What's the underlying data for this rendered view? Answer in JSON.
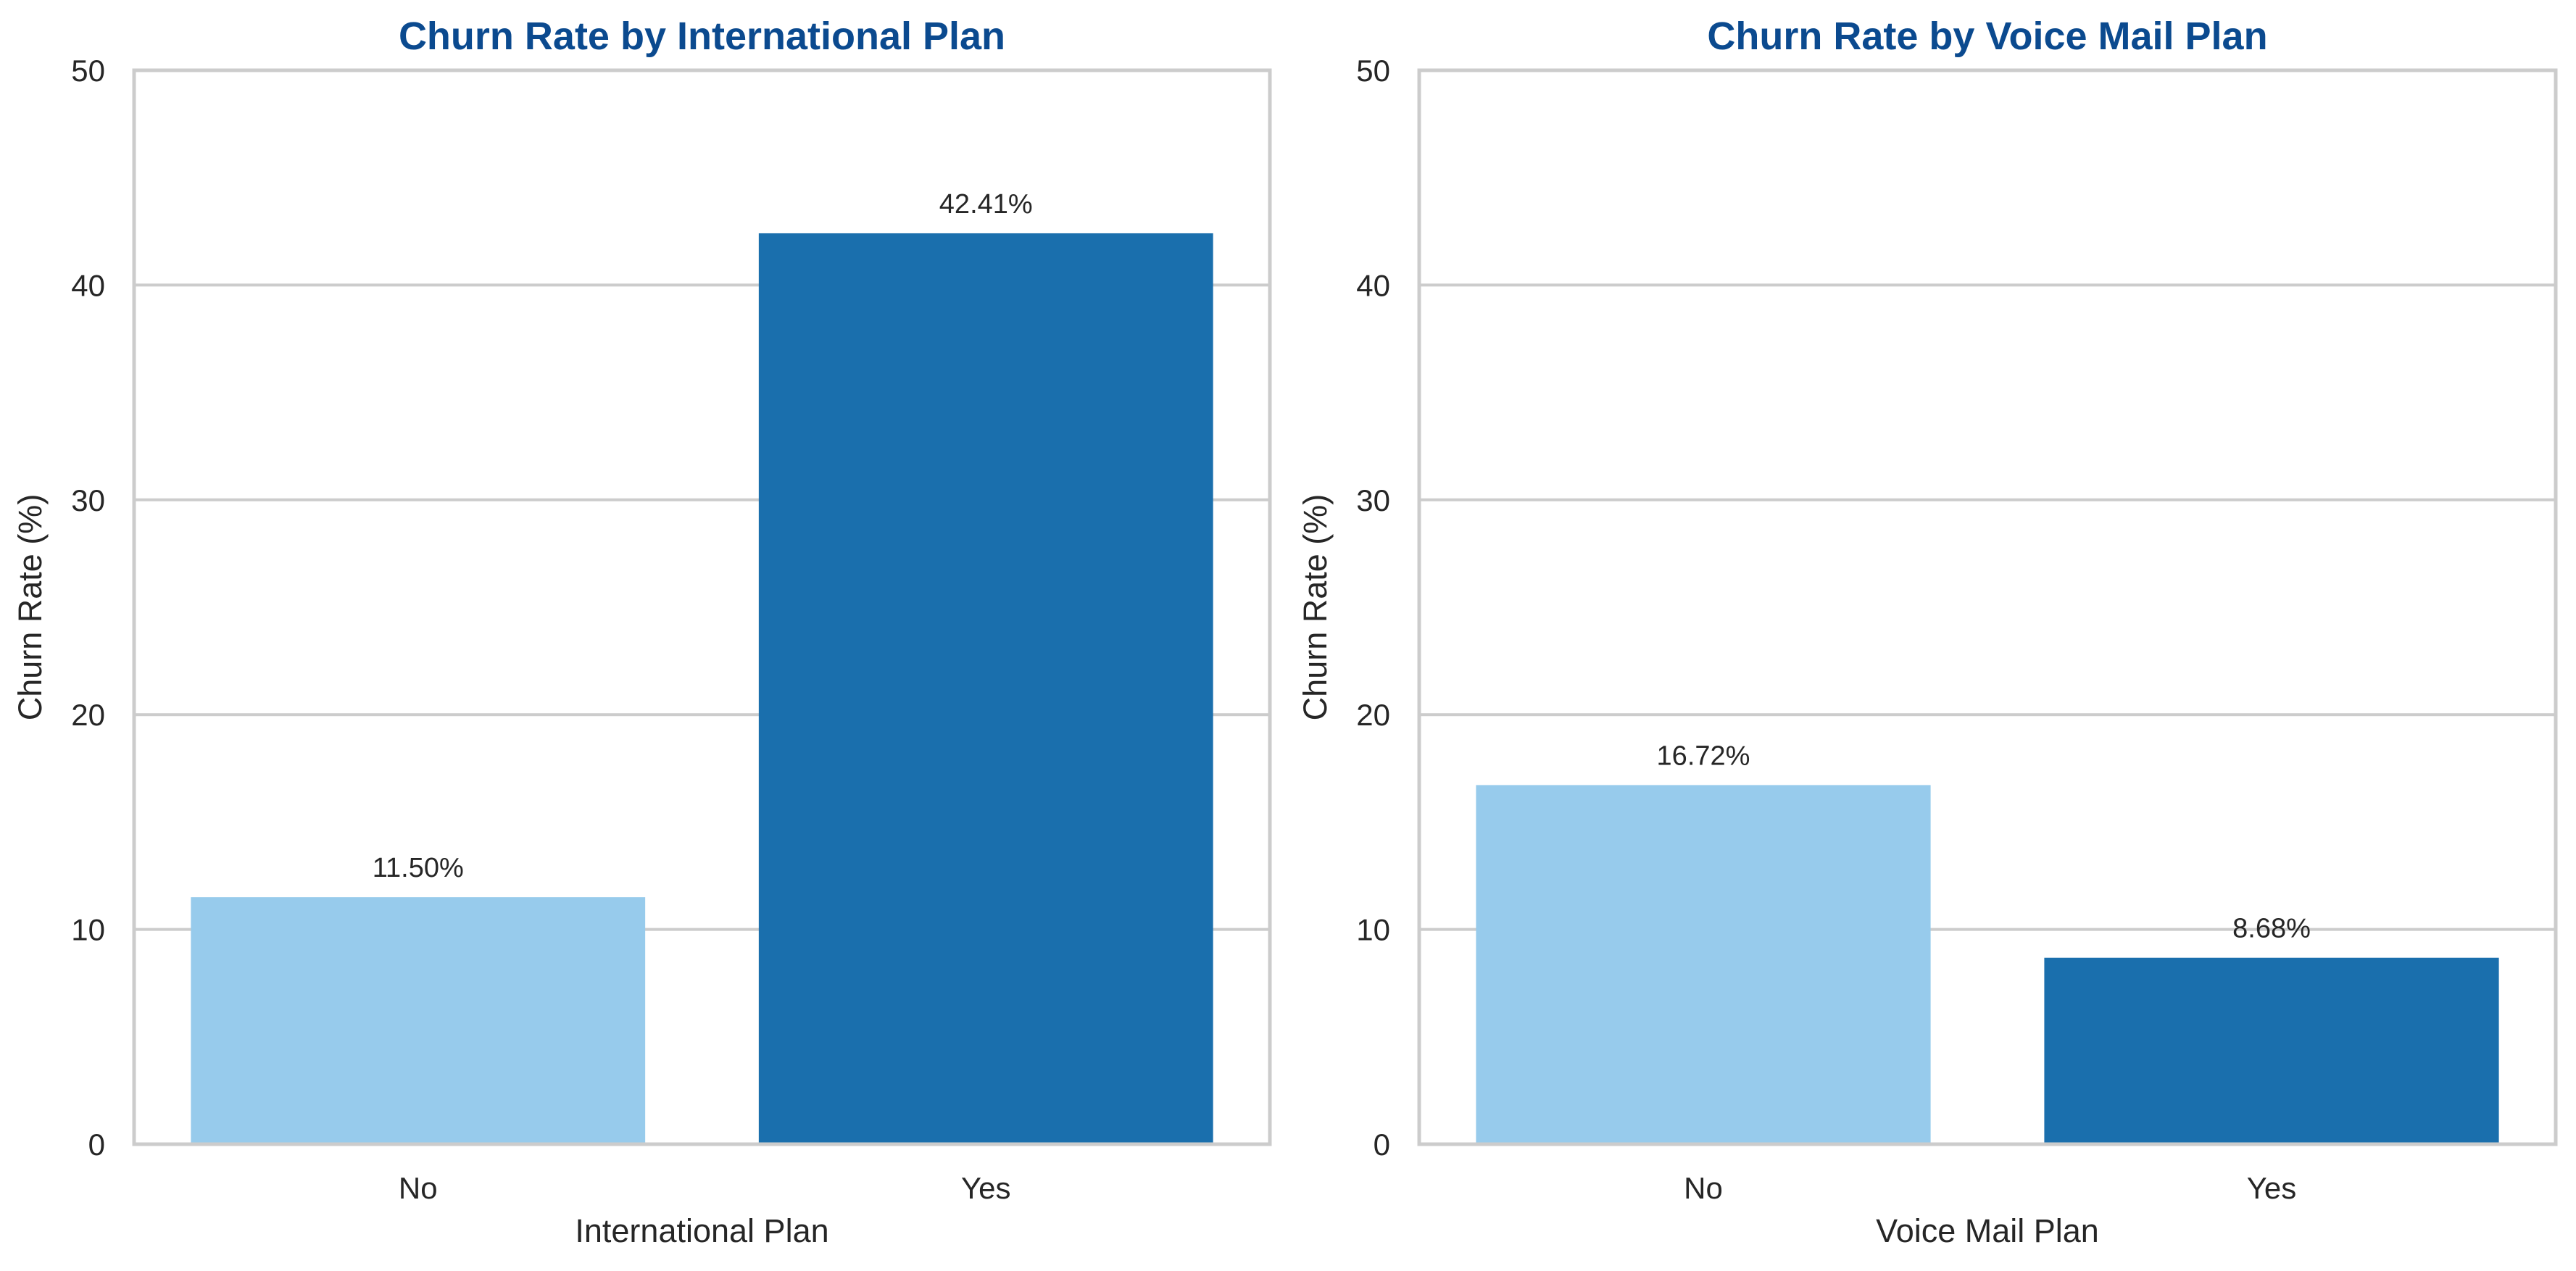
{
  "chart_data": [
    {
      "type": "bar",
      "title": "Churn Rate by International Plan",
      "xlabel": "International Plan",
      "ylabel": "Churn Rate (%)",
      "categories": [
        "No",
        "Yes"
      ],
      "values": [
        11.5,
        42.41
      ],
      "value_labels": [
        "11.50%",
        "42.41%"
      ],
      "bar_colors": [
        "#97cbec",
        "#1a6fad"
      ],
      "ylim": [
        0,
        50
      ],
      "yticks": [
        0,
        10,
        20,
        30,
        40,
        50
      ],
      "grid": "horizontal",
      "legend": "none"
    },
    {
      "type": "bar",
      "title": "Churn Rate by Voice Mail Plan",
      "xlabel": "Voice Mail Plan",
      "ylabel": "Churn Rate (%)",
      "categories": [
        "No",
        "Yes"
      ],
      "values": [
        16.72,
        8.68
      ],
      "value_labels": [
        "16.72%",
        "8.68%"
      ],
      "bar_colors": [
        "#97cbec",
        "#1a6fad"
      ],
      "ylim": [
        0,
        50
      ],
      "yticks": [
        0,
        10,
        20,
        30,
        40,
        50
      ],
      "grid": "horizontal",
      "legend": "none"
    }
  ],
  "style": {
    "title_color": "#0b4a8f",
    "grid_color": "#cccccc",
    "frame_color": "#cccccc",
    "text_color": "#262626"
  }
}
